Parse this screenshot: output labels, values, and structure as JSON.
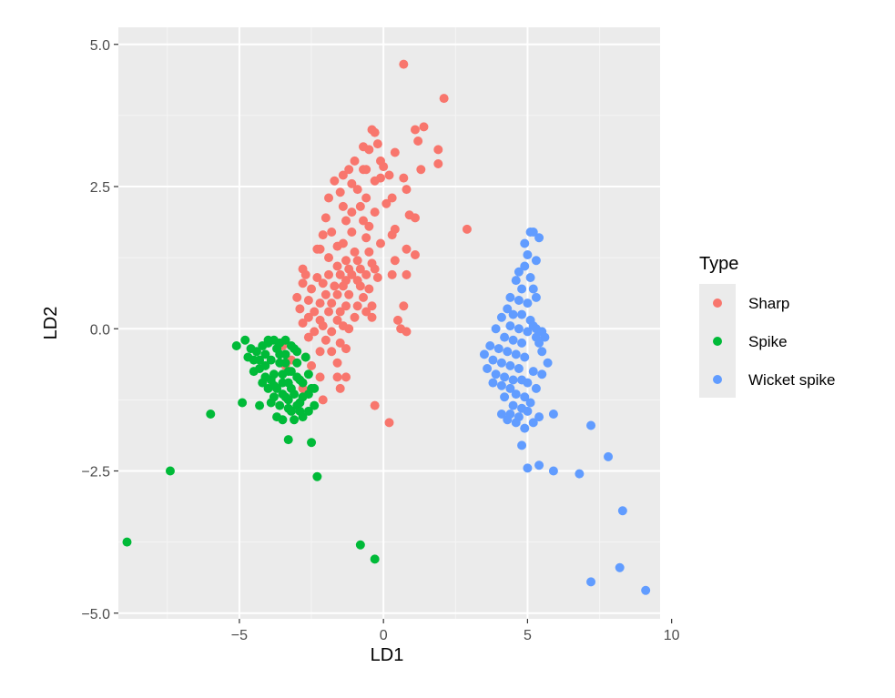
{
  "chart_data": {
    "type": "scatter",
    "xlabel": "LD1",
    "ylabel": "LD2",
    "xlim": [
      -9.2,
      9.6
    ],
    "ylim": [
      -5.1,
      5.3
    ],
    "x_ticks": [
      -5,
      0,
      5,
      10
    ],
    "x_tick_labels": [
      "−5",
      "0",
      "5",
      "10"
    ],
    "y_ticks": [
      -5,
      -2.5,
      0,
      2.5,
      5
    ],
    "y_tick_labels": [
      "−5.0",
      "−2.5",
      "0.0",
      "2.5",
      "5.0"
    ],
    "grid": true,
    "legend": {
      "title": "Type",
      "position": "right"
    },
    "series": [
      {
        "name": "Sharp",
        "color": "#F8766D",
        "points": [
          [
            0.7,
            4.65
          ],
          [
            2.1,
            4.05
          ],
          [
            1.4,
            3.55
          ],
          [
            1.1,
            3.5
          ],
          [
            -0.4,
            3.5
          ],
          [
            -0.3,
            3.45
          ],
          [
            -0.2,
            3.25
          ],
          [
            1.2,
            3.3
          ],
          [
            0.4,
            3.1
          ],
          [
            1.9,
            3.15
          ],
          [
            -0.7,
            3.2
          ],
          [
            -0.5,
            3.15
          ],
          [
            -1,
            2.95
          ],
          [
            -0.1,
            2.95
          ],
          [
            -0.7,
            2.8
          ],
          [
            -0.6,
            2.8
          ],
          [
            -1.2,
            2.8
          ],
          [
            0,
            2.85
          ],
          [
            0.2,
            2.7
          ],
          [
            1.9,
            2.9
          ],
          [
            1.3,
            2.8
          ],
          [
            -1.4,
            2.7
          ],
          [
            -1.7,
            2.6
          ],
          [
            -0.1,
            2.65
          ],
          [
            0.7,
            2.65
          ],
          [
            -1.1,
            2.55
          ],
          [
            -0.3,
            2.6
          ],
          [
            -0.9,
            2.45
          ],
          [
            0.8,
            2.45
          ],
          [
            -1.5,
            2.4
          ],
          [
            -1.9,
            2.3
          ],
          [
            -0.6,
            2.3
          ],
          [
            0.3,
            2.3
          ],
          [
            -0.8,
            2.15
          ],
          [
            0.1,
            2.2
          ],
          [
            -1.4,
            2.15
          ],
          [
            -1.1,
            2.05
          ],
          [
            -0.3,
            2.05
          ],
          [
            0.9,
            2
          ],
          [
            -2,
            1.95
          ],
          [
            -1.3,
            1.9
          ],
          [
            -0.7,
            1.9
          ],
          [
            1.1,
            1.95
          ],
          [
            0.4,
            1.75
          ],
          [
            2.9,
            1.75
          ],
          [
            -0.5,
            1.8
          ],
          [
            -1.8,
            1.7
          ],
          [
            -2.1,
            1.65
          ],
          [
            -1.1,
            1.7
          ],
          [
            -0.6,
            1.6
          ],
          [
            0.3,
            1.65
          ],
          [
            -1.4,
            1.5
          ],
          [
            -0.1,
            1.5
          ],
          [
            -1.6,
            1.45
          ],
          [
            -2.2,
            1.4
          ],
          [
            -2.3,
            1.4
          ],
          [
            -1,
            1.35
          ],
          [
            -0.5,
            1.35
          ],
          [
            0.8,
            1.4
          ],
          [
            1.1,
            1.3
          ],
          [
            -1.9,
            1.25
          ],
          [
            -1.3,
            1.2
          ],
          [
            -0.9,
            1.2
          ],
          [
            -0.4,
            1.15
          ],
          [
            0.4,
            1.2
          ],
          [
            -1.6,
            1.1
          ],
          [
            -1.2,
            1.05
          ],
          [
            -0.8,
            1.05
          ],
          [
            -0.3,
            1.05
          ],
          [
            -2.8,
            1.05
          ],
          [
            -2.7,
            0.95
          ],
          [
            -1.9,
            0.95
          ],
          [
            -1.5,
            0.95
          ],
          [
            -1.1,
            0.95
          ],
          [
            -0.6,
            0.95
          ],
          [
            -0.2,
            0.9
          ],
          [
            -2.3,
            0.9
          ],
          [
            -1.3,
            0.85
          ],
          [
            -0.9,
            0.85
          ],
          [
            0.3,
            0.95
          ],
          [
            0.8,
            0.95
          ],
          [
            -2.8,
            0.8
          ],
          [
            -2.1,
            0.8
          ],
          [
            -1.7,
            0.75
          ],
          [
            -1.4,
            0.75
          ],
          [
            -0.8,
            0.75
          ],
          [
            -0.5,
            0.7
          ],
          [
            -2.5,
            0.7
          ],
          [
            -2,
            0.6
          ],
          [
            -1.6,
            0.6
          ],
          [
            -1.2,
            0.6
          ],
          [
            -0.7,
            0.55
          ],
          [
            -3,
            0.55
          ],
          [
            -2.6,
            0.5
          ],
          [
            -2.2,
            0.45
          ],
          [
            -1.8,
            0.45
          ],
          [
            -1.3,
            0.4
          ],
          [
            -0.9,
            0.4
          ],
          [
            -0.4,
            0.4
          ],
          [
            -2.9,
            0.35
          ],
          [
            -2.4,
            0.3
          ],
          [
            -1.9,
            0.3
          ],
          [
            -1.5,
            0.3
          ],
          [
            0.7,
            0.4
          ],
          [
            -2.6,
            0.2
          ],
          [
            -2.2,
            0.15
          ],
          [
            -1.6,
            0.15
          ],
          [
            -1,
            0.2
          ],
          [
            -0.6,
            0.3
          ],
          [
            -2.8,
            0.1
          ],
          [
            -2.1,
            0.05
          ],
          [
            -1.4,
            0.05
          ],
          [
            -0.4,
            0.2
          ],
          [
            0.5,
            0.15
          ],
          [
            -2.4,
            -0.05
          ],
          [
            -1.8,
            -0.05
          ],
          [
            -1.2,
            0
          ],
          [
            0.6,
            0
          ],
          [
            -2.6,
            -0.15
          ],
          [
            -2,
            -0.2
          ],
          [
            -1.5,
            -0.25
          ],
          [
            0.8,
            -0.05
          ],
          [
            -2.2,
            -0.4
          ],
          [
            -1.8,
            -0.4
          ],
          [
            -1.3,
            -0.35
          ],
          [
            -2.7,
            -0.5
          ],
          [
            -3.2,
            -0.55
          ],
          [
            -1.6,
            -0.6
          ],
          [
            -2.5,
            -0.65
          ],
          [
            -3.4,
            -0.65
          ],
          [
            -2.2,
            -0.85
          ],
          [
            -1.6,
            -0.85
          ],
          [
            -1.3,
            -0.85
          ],
          [
            -1.5,
            -1.05
          ],
          [
            -2.8,
            -1.05
          ],
          [
            -2.1,
            -1.25
          ],
          [
            -0.3,
            -1.35
          ],
          [
            0.2,
            -1.65
          ],
          [
            -3.5,
            -0.3
          ]
        ]
      },
      {
        "name": "Spike",
        "color": "#00BA38",
        "points": [
          [
            -8.9,
            -3.75
          ],
          [
            -7.4,
            -2.5
          ],
          [
            -6,
            -1.5
          ],
          [
            -5.1,
            -0.3
          ],
          [
            -4.9,
            -1.3
          ],
          [
            -4.3,
            -1.35
          ],
          [
            -4.8,
            -0.2
          ],
          [
            -4.6,
            -0.35
          ],
          [
            -4.5,
            -0.55
          ],
          [
            -4.3,
            -0.7
          ],
          [
            -4.1,
            -0.45
          ],
          [
            -4,
            -0.25
          ],
          [
            -3.9,
            -0.55
          ],
          [
            -3.8,
            -0.8
          ],
          [
            -3.7,
            -0.35
          ],
          [
            -3.6,
            -0.6
          ],
          [
            -3.5,
            -0.95
          ],
          [
            -3.4,
            -0.45
          ],
          [
            -3.3,
            -0.75
          ],
          [
            -3.2,
            -1.05
          ],
          [
            -3.1,
            -0.35
          ],
          [
            -3,
            -0.6
          ],
          [
            -2.9,
            -0.9
          ],
          [
            -2.8,
            -1.2
          ],
          [
            -2.7,
            -0.5
          ],
          [
            -2.6,
            -0.8
          ],
          [
            -2.5,
            -1.05
          ],
          [
            -2.4,
            -1.35
          ],
          [
            -4.4,
            -0.4
          ],
          [
            -4.2,
            -0.3
          ],
          [
            -4,
            -0.2
          ],
          [
            -3.8,
            -0.2
          ],
          [
            -3.6,
            -0.25
          ],
          [
            -3.4,
            -0.2
          ],
          [
            -3.2,
            -0.3
          ],
          [
            -3,
            -0.4
          ],
          [
            -4.7,
            -0.5
          ],
          [
            -4.5,
            -0.75
          ],
          [
            -4.2,
            -0.95
          ],
          [
            -4,
            -1.05
          ],
          [
            -3.8,
            -1.2
          ],
          [
            -3.6,
            -1.35
          ],
          [
            -3.4,
            -1.2
          ],
          [
            -3.2,
            -1.45
          ],
          [
            -3,
            -1.35
          ],
          [
            -2.8,
            -1.55
          ],
          [
            -2.6,
            -1.45
          ],
          [
            -3.9,
            -1.3
          ],
          [
            -3.7,
            -1.55
          ],
          [
            -3.5,
            -1.6
          ],
          [
            -3.3,
            -1.4
          ],
          [
            -3.1,
            -1.6
          ],
          [
            -2.9,
            -1.45
          ],
          [
            -4.1,
            -0.65
          ],
          [
            -3.9,
            -0.9
          ],
          [
            -3.7,
            -1.05
          ],
          [
            -3.5,
            -0.8
          ],
          [
            -3.3,
            -0.95
          ],
          [
            -3.1,
            -1.15
          ],
          [
            -2.9,
            -1.3
          ],
          [
            -3.6,
            -0.45
          ],
          [
            -3.4,
            -0.6
          ],
          [
            -3.2,
            -0.75
          ],
          [
            -3,
            -0.85
          ],
          [
            -2.8,
            -0.95
          ],
          [
            -4.3,
            -0.55
          ],
          [
            -4.1,
            -0.85
          ],
          [
            -3.8,
            -1.0
          ],
          [
            -3.5,
            -1.15
          ],
          [
            -3.3,
            -1.25
          ],
          [
            -2.6,
            -1.15
          ],
          [
            -2.4,
            -1.05
          ],
          [
            -3.3,
            -1.95
          ],
          [
            -2.5,
            -2.0
          ],
          [
            -2.3,
            -2.6
          ],
          [
            -0.8,
            -3.8
          ],
          [
            -0.3,
            -4.05
          ]
        ]
      },
      {
        "name": "Wicket spike",
        "color": "#619CFF",
        "points": [
          [
            5.1,
            1.7
          ],
          [
            5.2,
            1.7
          ],
          [
            5.4,
            1.6
          ],
          [
            4.9,
            1.5
          ],
          [
            5.0,
            1.3
          ],
          [
            4.9,
            1.1
          ],
          [
            5.3,
            1.2
          ],
          [
            4.7,
            1.0
          ],
          [
            5.1,
            0.9
          ],
          [
            4.6,
            0.85
          ],
          [
            4.8,
            0.7
          ],
          [
            5.2,
            0.7
          ],
          [
            4.4,
            0.55
          ],
          [
            4.7,
            0.5
          ],
          [
            5.0,
            0.45
          ],
          [
            5.3,
            0.55
          ],
          [
            4.3,
            0.35
          ],
          [
            4.5,
            0.25
          ],
          [
            4.8,
            0.25
          ],
          [
            5.1,
            0.15
          ],
          [
            4.1,
            0.2
          ],
          [
            4.4,
            0.05
          ],
          [
            4.7,
            0.0
          ],
          [
            5.0,
            -0.05
          ],
          [
            3.9,
            0.0
          ],
          [
            4.2,
            -0.15
          ],
          [
            4.5,
            -0.2
          ],
          [
            4.8,
            -0.25
          ],
          [
            5.2,
            0.05
          ],
          [
            5.3,
            0.0
          ],
          [
            5.5,
            -0.05
          ],
          [
            5.3,
            -0.15
          ],
          [
            5.4,
            -0.25
          ],
          [
            5.6,
            -0.15
          ],
          [
            5.5,
            -0.4
          ],
          [
            3.7,
            -0.3
          ],
          [
            4.0,
            -0.35
          ],
          [
            4.3,
            -0.4
          ],
          [
            4.6,
            -0.45
          ],
          [
            4.9,
            -0.5
          ],
          [
            5.7,
            -0.6
          ],
          [
            3.5,
            -0.45
          ],
          [
            3.8,
            -0.55
          ],
          [
            4.1,
            -0.6
          ],
          [
            4.4,
            -0.65
          ],
          [
            4.7,
            -0.7
          ],
          [
            3.6,
            -0.7
          ],
          [
            3.9,
            -0.8
          ],
          [
            4.2,
            -0.85
          ],
          [
            4.5,
            -0.9
          ],
          [
            5.2,
            -0.75
          ],
          [
            5.5,
            -0.8
          ],
          [
            3.8,
            -0.95
          ],
          [
            4.1,
            -1.0
          ],
          [
            4.4,
            -1.05
          ],
          [
            4.8,
            -0.9
          ],
          [
            5.0,
            -0.95
          ],
          [
            4.2,
            -1.2
          ],
          [
            4.6,
            -1.15
          ],
          [
            4.9,
            -1.2
          ],
          [
            5.3,
            -1.05
          ],
          [
            4.5,
            -1.35
          ],
          [
            4.8,
            -1.4
          ],
          [
            5.1,
            -1.3
          ],
          [
            4.1,
            -1.5
          ],
          [
            4.4,
            -1.5
          ],
          [
            4.7,
            -1.55
          ],
          [
            5.0,
            -1.45
          ],
          [
            4.3,
            -1.6
          ],
          [
            4.6,
            -1.65
          ],
          [
            4.9,
            -1.75
          ],
          [
            5.2,
            -1.65
          ],
          [
            5.4,
            -1.55
          ],
          [
            5.9,
            -1.5
          ],
          [
            4.8,
            -2.05
          ],
          [
            5.0,
            -2.45
          ],
          [
            5.4,
            -2.4
          ],
          [
            5.9,
            -2.5
          ],
          [
            6.8,
            -2.55
          ],
          [
            7.2,
            -1.7
          ],
          [
            7.8,
            -2.25
          ],
          [
            8.3,
            -3.2
          ],
          [
            8.2,
            -4.2
          ],
          [
            7.2,
            -4.45
          ],
          [
            9.1,
            -4.6
          ]
        ]
      }
    ]
  }
}
